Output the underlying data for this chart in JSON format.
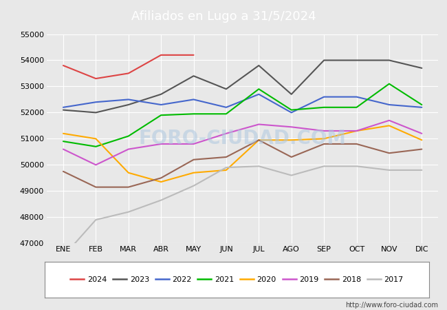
{
  "title": "Afiliados en Lugo a 31/5/2024",
  "title_color": "white",
  "header_bg": "#5599cc",
  "months": [
    "ENE",
    "FEB",
    "MAR",
    "ABR",
    "MAY",
    "JUN",
    "JUL",
    "AGO",
    "SEP",
    "OCT",
    "NOV",
    "DIC"
  ],
  "ylim": [
    47000,
    55000
  ],
  "yticks": [
    47000,
    48000,
    49000,
    50000,
    51000,
    52000,
    53000,
    54000,
    55000
  ],
  "plot_bg": "#e8e8e8",
  "fig_bg": "#e8e8e8",
  "series": {
    "2024": {
      "color": "#dd4444",
      "data": [
        53800,
        53300,
        53500,
        54200,
        54200,
        null,
        null,
        null,
        null,
        null,
        null,
        null
      ]
    },
    "2023": {
      "color": "#555555",
      "data": [
        52100,
        52000,
        52300,
        52700,
        53400,
        52900,
        53800,
        52700,
        54000,
        54000,
        54000,
        53700
      ]
    },
    "2022": {
      "color": "#4466cc",
      "data": [
        52200,
        52400,
        52500,
        52300,
        52500,
        52200,
        52700,
        52000,
        52600,
        52600,
        52300,
        52200
      ]
    },
    "2021": {
      "color": "#00bb00",
      "data": [
        50900,
        50700,
        51100,
        51900,
        51950,
        51950,
        52900,
        52100,
        52200,
        52200,
        53100,
        52300
      ]
    },
    "2020": {
      "color": "#ffaa00",
      "data": [
        51200,
        51000,
        49700,
        49350,
        49700,
        49800,
        50950,
        50950,
        51000,
        51300,
        51500,
        50950
      ]
    },
    "2019": {
      "color": "#cc55cc",
      "data": [
        50600,
        50000,
        50600,
        50800,
        50800,
        51200,
        51550,
        51450,
        51300,
        51300,
        51700,
        51200
      ]
    },
    "2018": {
      "color": "#996655",
      "data": [
        49750,
        49150,
        49150,
        49500,
        50200,
        50300,
        50950,
        50300,
        50800,
        50800,
        50450,
        50600
      ]
    },
    "2017": {
      "color": "#bbbbbb",
      "data": [
        46500,
        47900,
        48200,
        48650,
        49200,
        49900,
        49950,
        49600,
        49950,
        49950,
        49800,
        49800
      ]
    }
  },
  "watermark": "FORO-CIUDAD.COM",
  "url": "http://www.foro-ciudad.com",
  "legend_order": [
    "2024",
    "2023",
    "2022",
    "2021",
    "2020",
    "2019",
    "2018",
    "2017"
  ]
}
